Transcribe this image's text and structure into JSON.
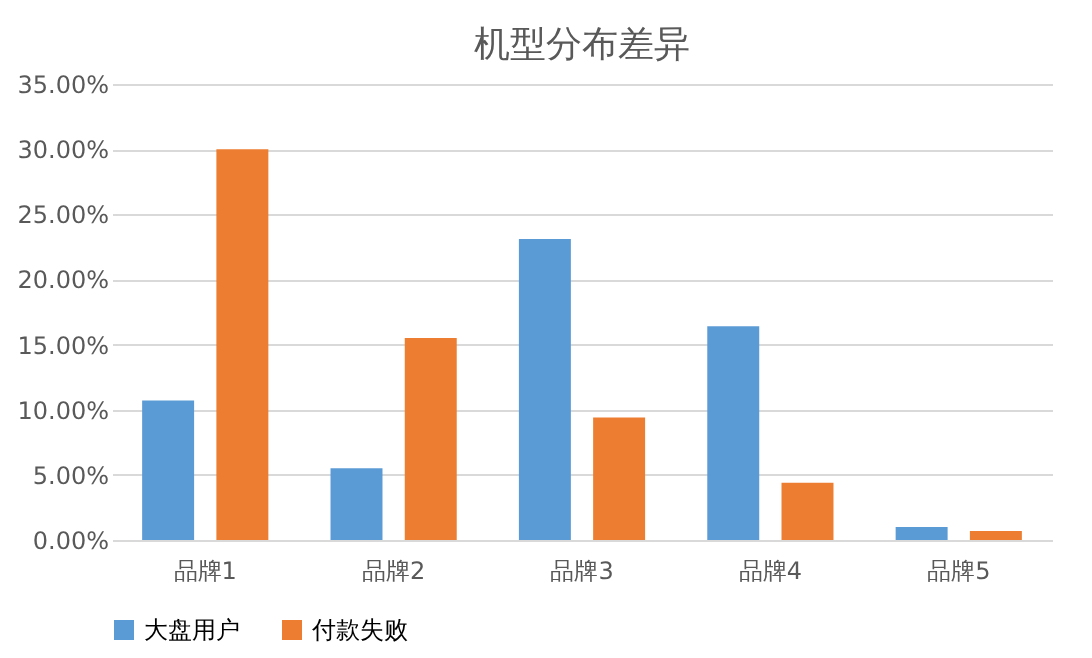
{
  "chart_data": {
    "type": "bar",
    "title": "机型分布差异",
    "categories": [
      "品牌1",
      "品牌2",
      "品牌3",
      "品牌4",
      "品牌5"
    ],
    "series": [
      {
        "name": "大盘用户",
        "color": "#5b9bd5",
        "values": [
          10.7,
          5.5,
          23.1,
          16.4,
          1.0
        ]
      },
      {
        "name": "付款失败",
        "color": "#ed7d31",
        "values": [
          30.0,
          15.5,
          9.4,
          4.4,
          0.7
        ]
      }
    ],
    "ylim": [
      0,
      35
    ],
    "yticks": [
      {
        "value": 0,
        "label": "0.00%"
      },
      {
        "value": 5,
        "label": "5.00%"
      },
      {
        "value": 10,
        "label": "10.00%"
      },
      {
        "value": 15,
        "label": "15.00%"
      },
      {
        "value": 20,
        "label": "20.00%"
      },
      {
        "value": 25,
        "label": "25.00%"
      },
      {
        "value": 30,
        "label": "30.00%"
      },
      {
        "value": 35,
        "label": "35.00%"
      }
    ],
    "grid": "y",
    "legend": "bottom"
  }
}
